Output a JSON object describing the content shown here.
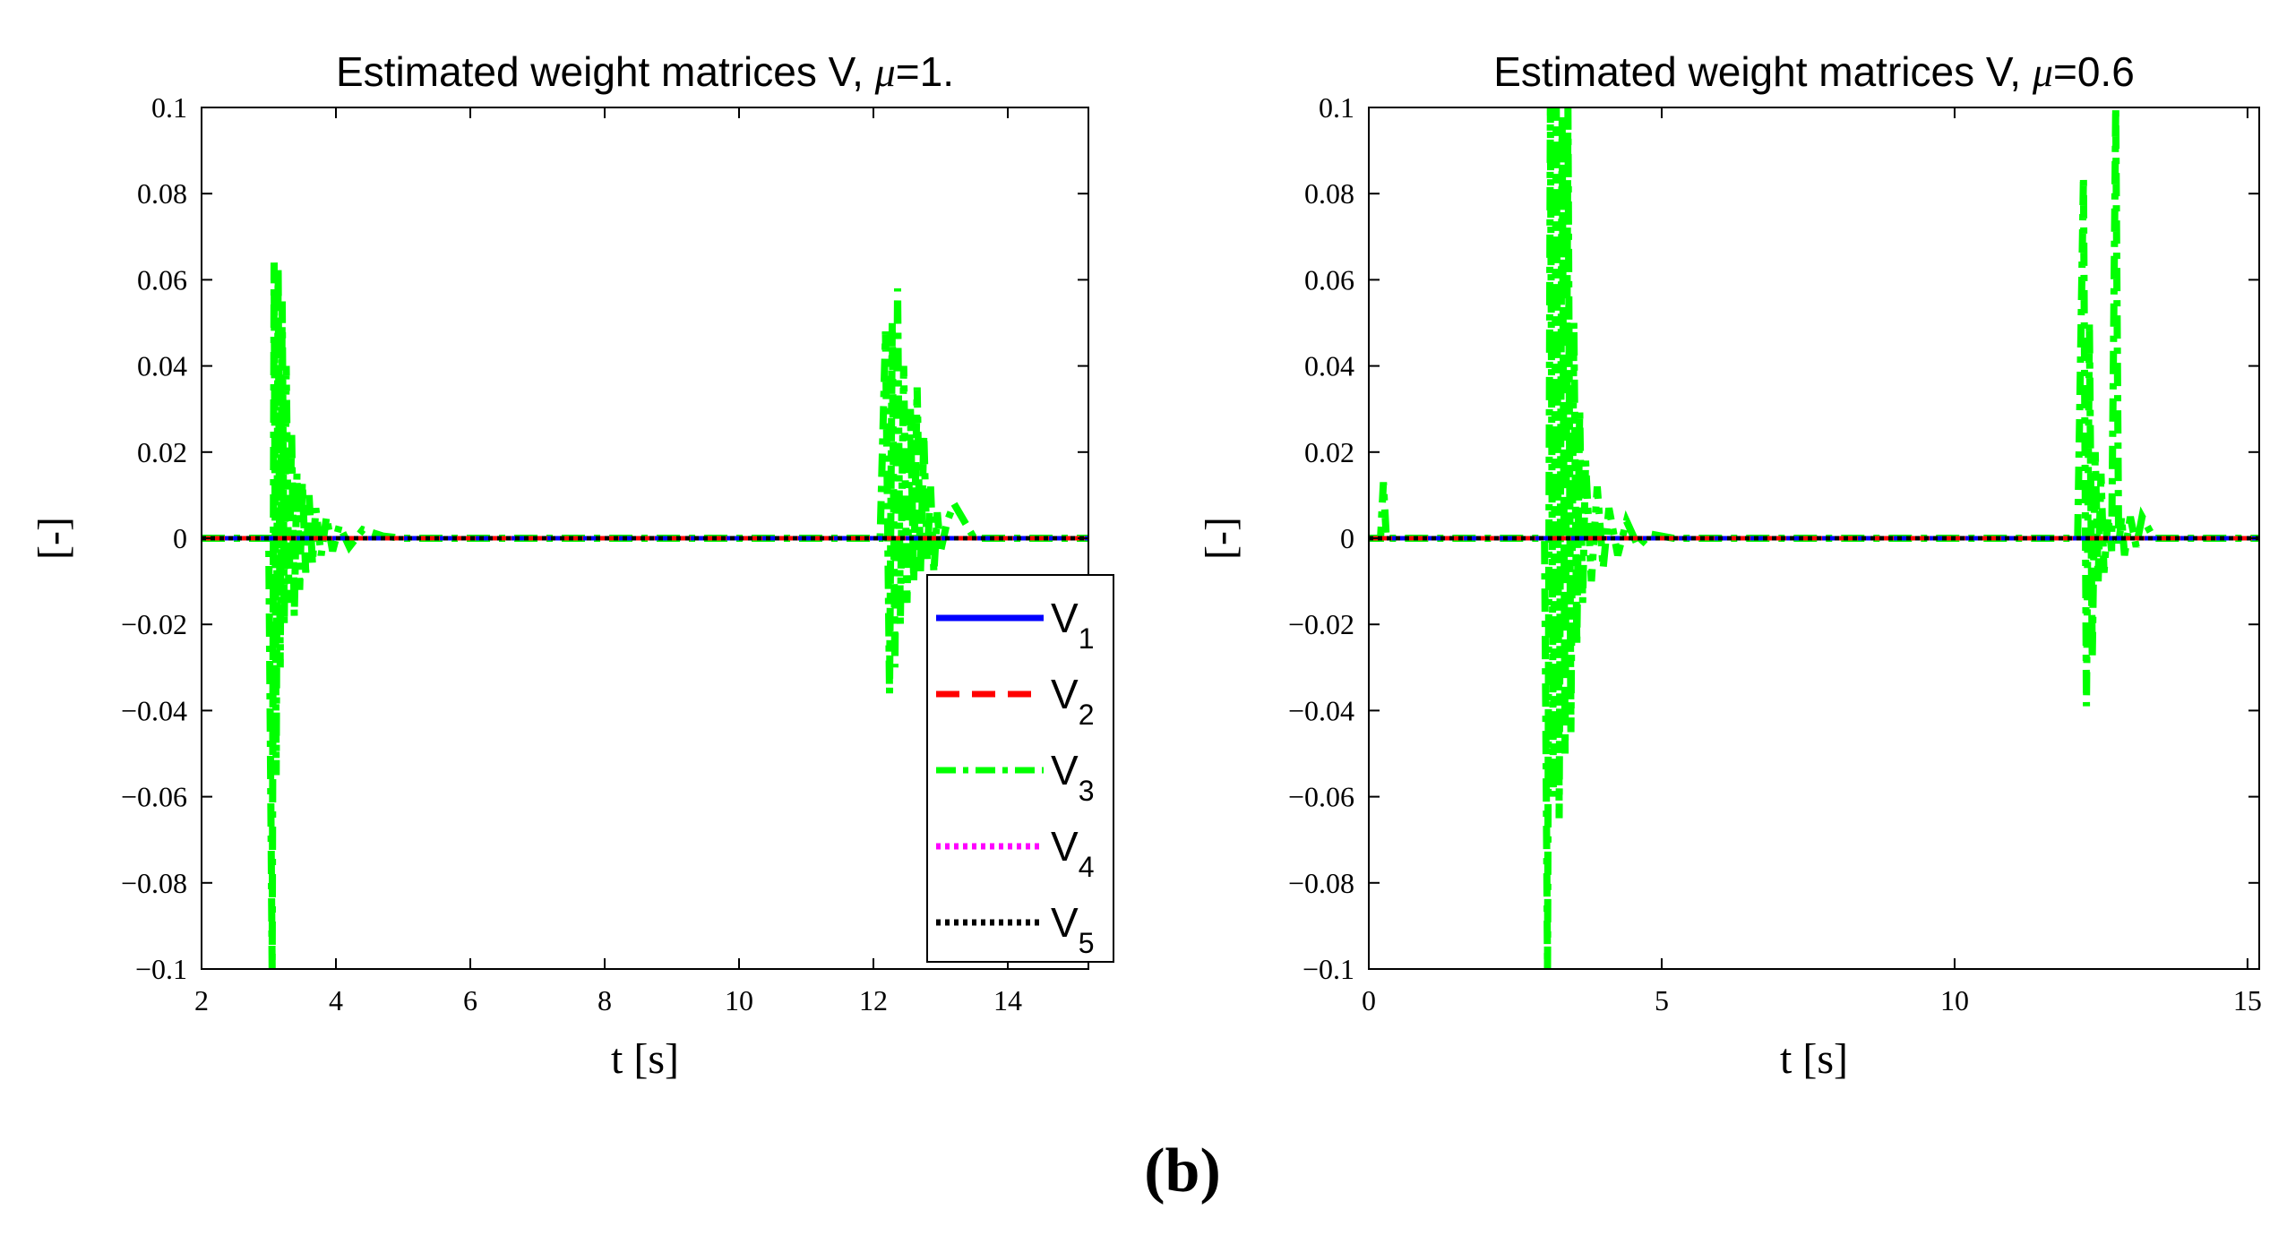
{
  "figure_label": "(b)",
  "legend": {
    "entries": [
      {
        "base": "V",
        "sub": "1",
        "color": "#0000ff",
        "style": "solid"
      },
      {
        "base": "V",
        "sub": "2",
        "color": "#ff0000",
        "style": "dashed"
      },
      {
        "base": "V",
        "sub": "3",
        "color": "#00ff00",
        "style": "dashdot"
      },
      {
        "base": "V",
        "sub": "4",
        "color": "#ff00ff",
        "style": "dotted"
      },
      {
        "base": "V",
        "sub": "5",
        "color": "#000000",
        "style": "dotted"
      }
    ]
  },
  "chart_data": [
    {
      "type": "line",
      "title_prefix": "Estimated weight matrices V,  ",
      "title_mu": "μ",
      "title_suffix": "=1.",
      "xlabel": "t [s]",
      "ylabel": "[-]",
      "xlim": [
        2,
        15.2
      ],
      "ylim": [
        -0.1,
        0.1
      ],
      "xticks": [
        2,
        4,
        6,
        8,
        10,
        12,
        14
      ],
      "xtick_labels": [
        "2",
        "4",
        "6",
        "8",
        "10",
        "12",
        "14"
      ],
      "yticks": [
        0.1,
        0.08,
        0.06,
        0.04,
        0.02,
        0,
        -0.02,
        -0.04,
        -0.06,
        -0.08,
        -0.1
      ],
      "ytick_labels": [
        "0.1",
        "0.08",
        "0.06",
        "0.04",
        "0.02",
        "0",
        "−0.02",
        "−0.04",
        "−0.06",
        "−0.08",
        "−0.1"
      ],
      "series": [
        {
          "name": "V1",
          "color": "#0000ff",
          "style": "solid",
          "x": [
            2,
            15.2
          ],
          "y": [
            0,
            0
          ]
        },
        {
          "name": "V2",
          "color": "#ff0000",
          "style": "dashed",
          "x": [
            2,
            15.2
          ],
          "y": [
            0,
            0
          ]
        },
        {
          "name": "V3",
          "color": "#00ff00",
          "style": "dashdot",
          "x": [
            2.0,
            3.0,
            3.05,
            3.08,
            3.11,
            3.14,
            3.17,
            3.2,
            3.23,
            3.26,
            3.3,
            3.34,
            3.38,
            3.42,
            3.46,
            3.5,
            3.55,
            3.6,
            3.65,
            3.7,
            3.78,
            3.86,
            3.95,
            4.05,
            4.2,
            4.4,
            4.7,
            5.0,
            12.1,
            12.18,
            12.24,
            12.28,
            12.32,
            12.36,
            12.4,
            12.45,
            12.5,
            12.55,
            12.6,
            12.65,
            12.7,
            12.75,
            12.8,
            12.85,
            12.9,
            12.95,
            13.0,
            13.1,
            13.2,
            13.5,
            15.2
          ],
          "y": [
            0,
            0,
            -0.1,
            0.064,
            -0.055,
            0.063,
            -0.03,
            0.055,
            -0.02,
            0.04,
            -0.015,
            0.025,
            -0.018,
            0.015,
            -0.012,
            0.013,
            -0.008,
            0.01,
            -0.006,
            0.007,
            -0.004,
            0.005,
            -0.003,
            0.003,
            -0.002,
            0.002,
            0.0005,
            0,
            0,
            0.048,
            -0.036,
            0.05,
            -0.03,
            0.058,
            -0.02,
            0.04,
            -0.015,
            0.03,
            -0.01,
            0.035,
            -0.008,
            0.024,
            -0.005,
            0.012,
            -0.008,
            0.006,
            -0.003,
            0.004,
            0.008,
            0,
            0
          ]
        },
        {
          "name": "V4",
          "color": "#ff00ff",
          "style": "dotted",
          "x": [
            2,
            15.2
          ],
          "y": [
            0,
            0
          ]
        },
        {
          "name": "V5",
          "color": "#000000",
          "style": "dotted",
          "x": [
            2,
            15.2
          ],
          "y": [
            0,
            0
          ]
        }
      ]
    },
    {
      "type": "line",
      "title_prefix": "Estimated weight matrices V,  ",
      "title_mu": "μ",
      "title_suffix": "=0.6",
      "xlabel": "t [s]",
      "ylabel": "[-]",
      "xlim": [
        0,
        15.2
      ],
      "ylim": [
        -0.1,
        0.1
      ],
      "xticks": [
        0,
        5,
        10,
        15
      ],
      "xtick_labels": [
        "0",
        "5",
        "10",
        "15"
      ],
      "yticks": [
        0.1,
        0.08,
        0.06,
        0.04,
        0.02,
        0,
        -0.02,
        -0.04,
        -0.06,
        -0.08,
        -0.1
      ],
      "ytick_labels": [
        "0.1",
        "0.08",
        "0.06",
        "0.04",
        "0.02",
        "0",
        "−0.02",
        "−0.04",
        "−0.06",
        "−0.08",
        "−0.1"
      ],
      "series": [
        {
          "name": "V1",
          "color": "#0000ff",
          "style": "solid",
          "x": [
            0,
            15.2
          ],
          "y": [
            0,
            0
          ]
        },
        {
          "name": "V2",
          "color": "#ff0000",
          "style": "dashed",
          "x": [
            0,
            15.2
          ],
          "y": [
            0,
            0
          ]
        },
        {
          "name": "V3",
          "color": "#00ff00",
          "style": "dashdot",
          "x": [
            0.0,
            0.2,
            0.25,
            0.3,
            0.35,
            3.0,
            3.05,
            3.1,
            3.15,
            3.2,
            3.25,
            3.3,
            3.35,
            3.4,
            3.45,
            3.5,
            3.55,
            3.6,
            3.65,
            3.7,
            3.8,
            3.9,
            4.0,
            4.1,
            4.25,
            4.4,
            4.6,
            4.8,
            5.2,
            12.1,
            12.2,
            12.25,
            12.3,
            12.35,
            12.4,
            12.45,
            12.5,
            12.55,
            12.62,
            12.68,
            12.75,
            12.8,
            12.85,
            12.9,
            13.0,
            13.1,
            13.2,
            13.4,
            15.2
          ],
          "y": [
            0,
            0,
            0.013,
            0,
            0,
            0,
            -0.1,
            0.1,
            -0.06,
            0.1,
            -0.065,
            0.098,
            -0.05,
            0.1,
            -0.045,
            0.05,
            -0.025,
            0.03,
            -0.015,
            0.018,
            -0.01,
            0.012,
            -0.007,
            0.007,
            -0.004,
            0.004,
            -0.002,
            0.001,
            0,
            0,
            0.084,
            -0.039,
            0.05,
            -0.028,
            0.02,
            -0.01,
            0.015,
            -0.008,
            0.005,
            -0.003,
            0.1,
            -0.002,
            0.005,
            -0.004,
            0.005,
            -0.002,
            0.005,
            0,
            0
          ]
        },
        {
          "name": "V4",
          "color": "#ff00ff",
          "style": "dotted",
          "x": [
            0,
            15.2
          ],
          "y": [
            0,
            0
          ]
        },
        {
          "name": "V5",
          "color": "#000000",
          "style": "dotted",
          "x": [
            0,
            15.2
          ],
          "y": [
            0,
            0
          ]
        }
      ]
    }
  ]
}
